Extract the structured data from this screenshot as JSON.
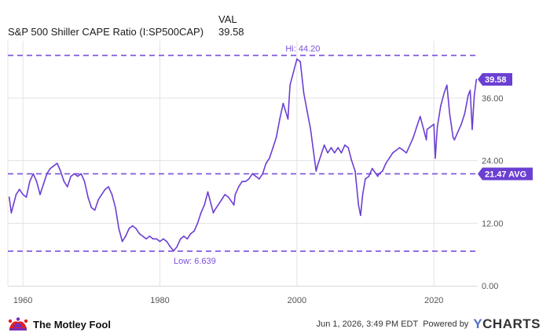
{
  "legend": {
    "column_header": "VAL",
    "series_name": "S&P 500 Shiller CAPE Ratio (I:SP500CAP)",
    "series_value": "39.58"
  },
  "footer": {
    "brand": "The Motley Fool",
    "timestamp": "Jun 1, 2026, 3:49 PM EDT",
    "powered_by": "Powered by",
    "ycharts_y": "Y",
    "ycharts_rest": "CHARTS"
  },
  "colors": {
    "line": "#6b3fd2",
    "ref_line": "#7b4fd8",
    "grid": "#e3e3e3",
    "tag_bg": "#6b3fd2"
  },
  "chart_data": {
    "type": "line",
    "x_ticks": [
      "1960",
      "1980",
      "2000",
      "2020"
    ],
    "y_ticks": [
      "0.00",
      "12.00",
      "24.00",
      "36.00"
    ],
    "xlim": [
      1957.8,
      2026.4
    ],
    "ylim": [
      0,
      47
    ],
    "grid": true,
    "reference_lines": [
      {
        "value": 44.2,
        "label": "Hi: 44.20",
        "type": "max"
      },
      {
        "value": 21.47,
        "label": "21.47 AVG",
        "type": "avg"
      },
      {
        "value": 6.639,
        "label": "Low: 6.639",
        "type": "min"
      }
    ],
    "last_value_label": "39.58",
    "series": [
      {
        "x": [
          1958.0,
          1958.3,
          1958.6,
          1959.0,
          1959.5,
          1960.0,
          1960.5,
          1961.0,
          1961.5,
          1962.0,
          1962.5,
          1963.0,
          1963.5,
          1964.0,
          1964.5,
          1965.0,
          1965.5,
          1966.0,
          1966.5,
          1967.0,
          1967.5,
          1968.0,
          1968.5,
          1969.0,
          1969.5,
          1970.0,
          1970.5,
          1971.0,
          1971.5,
          1972.0,
          1972.5,
          1973.0,
          1973.5,
          1974.0,
          1974.5,
          1975.0,
          1975.5,
          1976.0,
          1976.5,
          1977.0,
          1977.5,
          1978.0,
          1978.5,
          1979.0,
          1979.5,
          1980.0,
          1980.5,
          1981.0,
          1981.5,
          1982.0,
          1982.5,
          1983.0,
          1983.5,
          1984.0,
          1984.5,
          1985.0,
          1985.5,
          1986.0,
          1986.5,
          1987.0,
          1987.8,
          1988.0,
          1988.5,
          1989.0,
          1989.5,
          1990.0,
          1990.8,
          1991.0,
          1991.5,
          1992.0,
          1992.5,
          1993.0,
          1993.5,
          1994.0,
          1994.5,
          1995.0,
          1995.5,
          1996.0,
          1996.5,
          1997.0,
          1997.5,
          1998.0,
          1998.7,
          1999.0,
          1999.5,
          2000.0,
          2000.5,
          2001.0,
          2001.5,
          2002.0,
          2002.8,
          2003.0,
          2003.5,
          2004.0,
          2004.5,
          2005.0,
          2005.5,
          2006.0,
          2006.5,
          2007.0,
          2007.5,
          2008.0,
          2008.5,
          2009.0,
          2009.3,
          2009.6,
          2010.0,
          2010.5,
          2011.0,
          2011.8,
          2012.0,
          2012.5,
          2013.0,
          2013.5,
          2014.0,
          2014.5,
          2015.0,
          2015.5,
          2016.0,
          2016.5,
          2017.0,
          2017.5,
          2018.0,
          2018.9,
          2019.0,
          2019.5,
          2020.0,
          2020.2,
          2020.5,
          2021.0,
          2021.5,
          2021.9,
          2022.3,
          2022.8,
          2023.0,
          2023.5,
          2024.0,
          2024.5,
          2025.0,
          2025.3,
          2025.6,
          2025.9,
          2026.2
        ],
        "y": [
          17.0,
          14.0,
          15.5,
          17.5,
          18.5,
          17.5,
          17.0,
          20.0,
          21.5,
          20.0,
          17.5,
          19.5,
          21.5,
          22.5,
          23.0,
          23.5,
          22.0,
          20.0,
          19.0,
          21.0,
          21.5,
          21.0,
          21.5,
          20.0,
          17.0,
          15.0,
          14.5,
          16.5,
          17.5,
          18.5,
          19.0,
          17.5,
          15.0,
          11.0,
          8.5,
          9.5,
          11.0,
          11.5,
          11.0,
          10.0,
          9.5,
          9.0,
          9.5,
          9.0,
          9.0,
          8.5,
          9.0,
          8.5,
          7.5,
          6.7,
          7.5,
          9.0,
          9.5,
          9.0,
          10.0,
          10.5,
          12.0,
          14.0,
          15.5,
          18.0,
          14.0,
          14.5,
          15.5,
          16.5,
          17.5,
          17.0,
          15.5,
          17.5,
          19.0,
          20.0,
          20.0,
          20.5,
          21.5,
          21.0,
          20.5,
          21.5,
          23.5,
          24.5,
          26.5,
          28.5,
          32.0,
          35.0,
          32.0,
          38.5,
          41.0,
          43.5,
          43.0,
          37.0,
          33.5,
          30.0,
          22.0,
          23.0,
          25.0,
          27.0,
          25.5,
          26.5,
          25.5,
          26.5,
          25.5,
          27.0,
          26.5,
          24.0,
          22.0,
          15.5,
          13.5,
          17.5,
          20.5,
          21.0,
          22.5,
          21.0,
          21.5,
          22.0,
          23.5,
          24.5,
          25.5,
          26.0,
          26.5,
          26.0,
          25.5,
          27.0,
          28.5,
          30.5,
          32.5,
          28.0,
          30.0,
          30.5,
          31.0,
          24.5,
          30.5,
          34.5,
          37.0,
          38.5,
          33.0,
          28.5,
          28.0,
          29.5,
          31.0,
          33.0,
          36.5,
          37.5,
          30.0,
          36.5,
          39.6
        ]
      }
    ]
  }
}
